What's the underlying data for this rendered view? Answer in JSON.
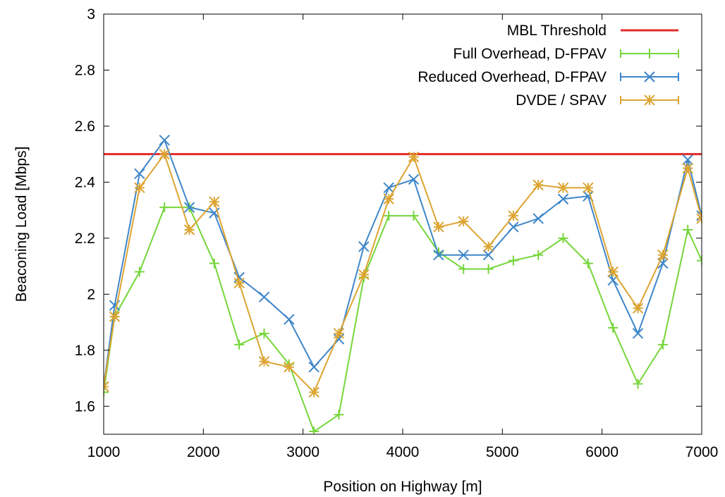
{
  "chart_data": {
    "type": "line",
    "title": "",
    "xlabel": "Position on Highway [m]",
    "ylabel": "Beaconing Load [Mbps]",
    "xlim": [
      1000,
      7000
    ],
    "ylim": [
      1.5,
      3.0
    ],
    "x_ticks": [
      1000,
      2000,
      3000,
      4000,
      5000,
      6000,
      7000
    ],
    "y_ticks": [
      1.6,
      1.8,
      2,
      2.2,
      2.4,
      2.6,
      2.8,
      3
    ],
    "x_tick_labels": [
      "1000",
      "2000",
      "3000",
      "4000",
      "5000",
      "6000",
      "7000"
    ],
    "y_tick_labels": [
      "1.6",
      "1.8",
      "2",
      "2.2",
      "2.4",
      "2.6",
      "2.8",
      "3"
    ],
    "grid": false,
    "legend_position": "top-right",
    "threshold": {
      "name": "MBL Threshold",
      "value": 2.5,
      "color": "#e32a2a"
    },
    "x": [
      1000,
      1110,
      1360,
      1610,
      1860,
      2110,
      2360,
      2610,
      2860,
      3110,
      3360,
      3610,
      3860,
      4110,
      4360,
      4610,
      4860,
      5110,
      5360,
      5610,
      5860,
      6110,
      6360,
      6610,
      6860,
      7000
    ],
    "series": [
      {
        "name": "Full Overhead, D-FPAV",
        "color": "#76d63a",
        "marker": "plus",
        "values": [
          1.65,
          1.92,
          2.08,
          2.31,
          2.31,
          2.11,
          1.82,
          1.86,
          1.75,
          1.51,
          1.57,
          2.06,
          2.28,
          2.28,
          2.15,
          2.09,
          2.09,
          2.12,
          2.14,
          2.2,
          2.11,
          1.88,
          1.68,
          1.82,
          2.23,
          2.12
        ]
      },
      {
        "name": "Reduced Overhead, D-FPAV",
        "color": "#3e86c9",
        "marker": "x",
        "values": [
          1.67,
          1.96,
          2.43,
          2.55,
          2.31,
          2.29,
          2.06,
          1.99,
          1.91,
          1.74,
          1.84,
          2.17,
          2.38,
          2.41,
          2.14,
          2.14,
          2.14,
          2.24,
          2.27,
          2.34,
          2.35,
          2.05,
          1.86,
          2.11,
          2.48,
          2.28
        ]
      },
      {
        "name": "DVDE / SPAV",
        "color": "#dca431",
        "marker": "star",
        "values": [
          1.67,
          1.92,
          2.38,
          2.5,
          2.23,
          2.33,
          2.04,
          1.76,
          1.74,
          1.65,
          1.86,
          2.07,
          2.34,
          2.49,
          2.24,
          2.26,
          2.17,
          2.28,
          2.39,
          2.38,
          2.38,
          2.08,
          1.95,
          2.14,
          2.45,
          2.27
        ]
      }
    ]
  }
}
